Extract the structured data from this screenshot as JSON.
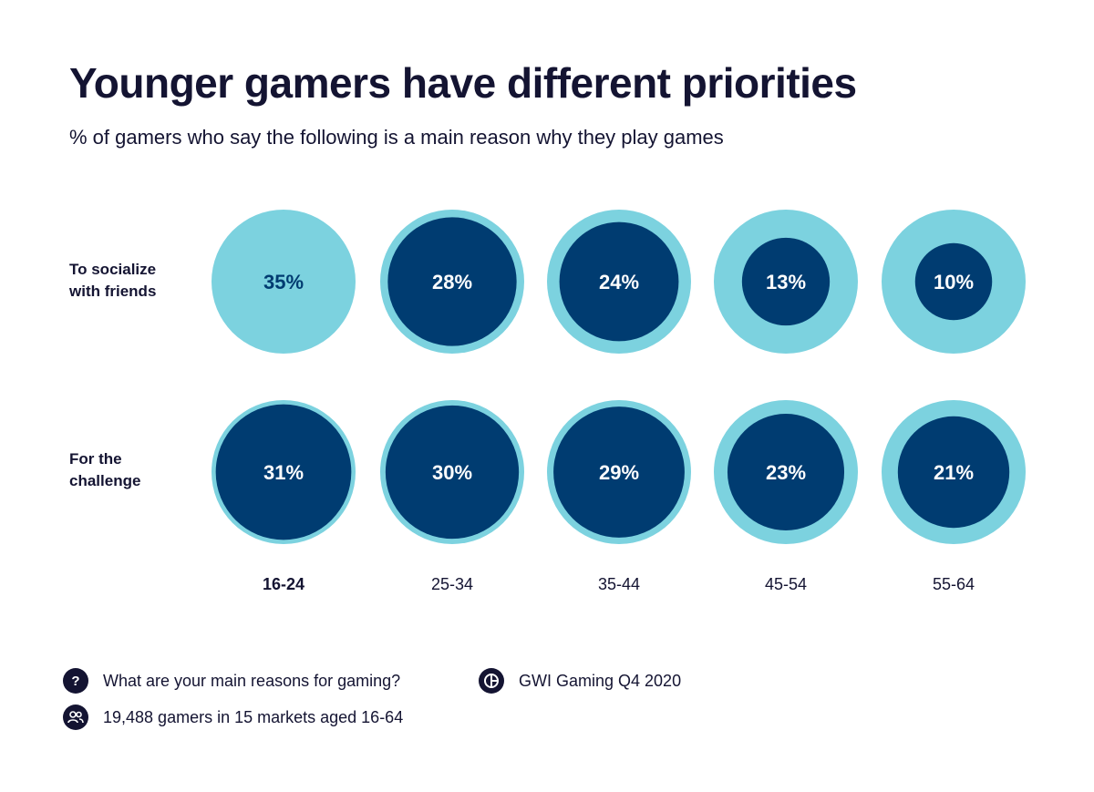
{
  "header": {
    "title": "Younger gamers have different priorities",
    "subtitle": "% of gamers who say the following is a main reason why they play games"
  },
  "colors": {
    "outer": "#7cd2df",
    "inner": "#003c71",
    "text_dark": "#003c71",
    "text_light": "#ffffff",
    "ink": "#141432"
  },
  "chart_data": {
    "type": "bubble-matrix",
    "categories": [
      "16-24",
      "25-34",
      "35-44",
      "45-54",
      "55-64"
    ],
    "highlight_category": "16-24",
    "max_value": 35,
    "series": [
      {
        "name": "To socialize\nwith friends",
        "values": [
          35,
          28,
          24,
          13,
          10
        ],
        "labels": [
          "35%",
          "28%",
          "24%",
          "13%",
          "10%"
        ]
      },
      {
        "name": "For the\nchallenge",
        "values": [
          31,
          30,
          29,
          23,
          21
        ],
        "labels": [
          "31%",
          "30%",
          "29%",
          "23%",
          "21%"
        ]
      }
    ]
  },
  "footer": {
    "question_icon": "question-icon",
    "question": "What are your main reasons for gaming?",
    "source_icon": "gwi-logo-icon",
    "source": "GWI Gaming Q4 2020",
    "sample_icon": "people-icon",
    "sample": "19,488 gamers in 15 markets aged 16-64"
  }
}
